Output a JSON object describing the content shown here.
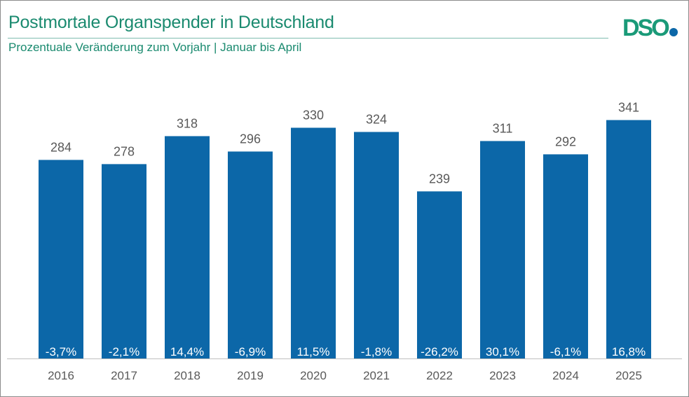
{
  "header": {
    "title": "Postmortale Organspender in Deutschland",
    "subtitle": "Prozentuale Veränderung zum Vorjahr | Januar bis April",
    "logo_text": "DSO"
  },
  "colors": {
    "bar": "#0c67a8",
    "title": "#1a8a6f",
    "logo_green": "#1a9a78",
    "logo_dot": "#0c67a8"
  },
  "chart_data": {
    "type": "bar",
    "title": "Postmortale Organspender in Deutschland",
    "subtitle": "Prozentuale Veränderung zum Vorjahr | Januar bis April",
    "categories": [
      "2016",
      "2017",
      "2018",
      "2019",
      "2020",
      "2021",
      "2022",
      "2023",
      "2024",
      "2025"
    ],
    "values": [
      284,
      278,
      318,
      296,
      330,
      324,
      239,
      311,
      292,
      341
    ],
    "change_labels": [
      "-3,7%",
      "-2,1%",
      "14,4%",
      "-6,9%",
      "11,5%",
      "-1,8%",
      "-26,2%",
      "30,1%",
      "-6,1%",
      "16,8%"
    ],
    "ylim": [
      0,
      360
    ],
    "grid": false,
    "legend": "none"
  }
}
